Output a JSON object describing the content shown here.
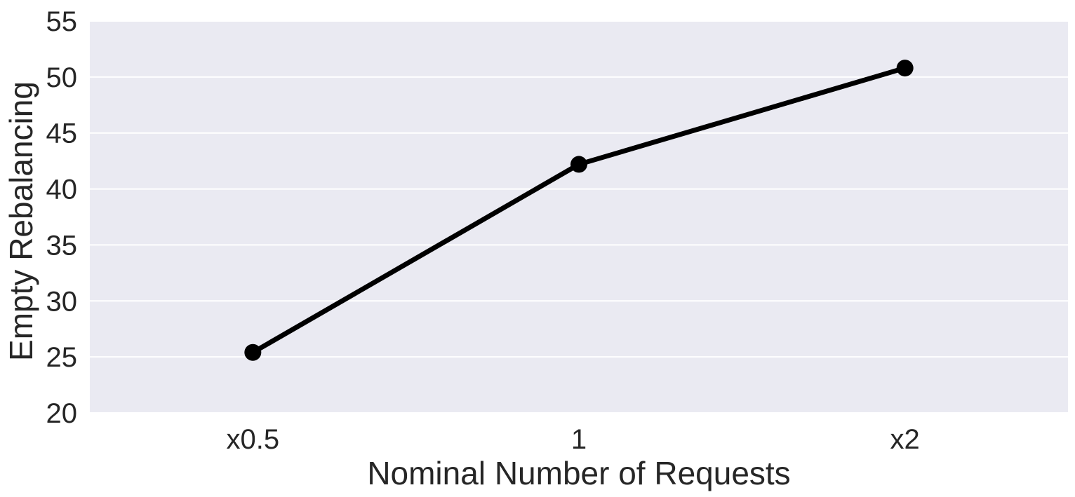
{
  "chart_data": {
    "type": "line",
    "categories": [
      "x0.5",
      "1",
      "x2"
    ],
    "series": [
      {
        "values": [
          25.4,
          42.2,
          50.8
        ]
      }
    ],
    "xlabel": "Nominal Number of Requests",
    "ylabel": "Empty Rebalancing",
    "ylim": [
      20,
      55
    ],
    "yticks": [
      "20",
      "25",
      "30",
      "35",
      "40",
      "45",
      "50",
      "55"
    ],
    "grid": "horizontal",
    "colors": {
      "plot_background": "#eaeaf2",
      "grid": "#ffffff",
      "line": "#000000",
      "marker": "#000000",
      "text": "#262626"
    }
  }
}
